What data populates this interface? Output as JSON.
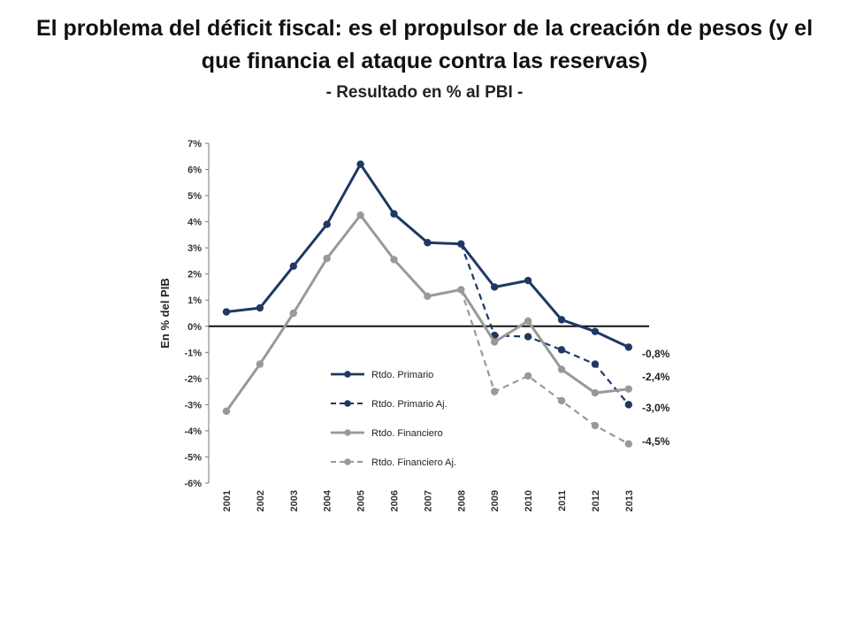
{
  "slide": {
    "title": "El problema del déficit fiscal: es el propulsor de la creación de pesos (y el que financia el ataque contra las reservas)",
    "subtitle": "- Resultado en % al PBI -"
  },
  "chart_data": {
    "type": "line",
    "ylabel": "En % del PIB",
    "xlabel": "",
    "ylim": [
      -6,
      7
    ],
    "yticks": [
      "7%",
      "6%",
      "5%",
      "4%",
      "3%",
      "2%",
      "1%",
      "0%",
      "-1%",
      "-2%",
      "-3%",
      "-4%",
      "-5%",
      "-6%"
    ],
    "categories": [
      "2001",
      "2002",
      "2003",
      "2004",
      "2005",
      "2006",
      "2007",
      "2008",
      "2009",
      "2010",
      "2011",
      "2012",
      "2013"
    ],
    "legend_position": "inside-lower-center",
    "series": [
      {
        "name": "Rtdo. Primario",
        "color": "#1f3864",
        "dashed": false,
        "values": [
          0.55,
          0.7,
          2.3,
          3.9,
          6.2,
          4.3,
          3.2,
          3.15,
          1.5,
          1.75,
          0.25,
          -0.2,
          -0.8
        ]
      },
      {
        "name": "Rtdo. Primario Aj.",
        "color": "#1f3864",
        "dashed": true,
        "values": [
          null,
          null,
          null,
          null,
          null,
          null,
          null,
          3.15,
          -0.35,
          -0.4,
          -0.9,
          -1.45,
          -3.0
        ]
      },
      {
        "name": "Rtdo. Financiero",
        "color": "#999999",
        "dashed": false,
        "values": [
          -3.25,
          -1.45,
          0.5,
          2.6,
          4.25,
          2.55,
          1.15,
          1.4,
          -0.6,
          0.2,
          -1.65,
          -2.55,
          -2.4
        ]
      },
      {
        "name": "Rtdo. Financiero Aj.",
        "color": "#999999",
        "dashed": true,
        "values": [
          null,
          null,
          null,
          null,
          null,
          null,
          null,
          1.4,
          -2.5,
          -1.9,
          -2.85,
          -3.8,
          -4.5
        ]
      }
    ],
    "end_labels": [
      "-0,8%",
      "-2,4%",
      "-3,0%",
      "-4,5%"
    ]
  }
}
